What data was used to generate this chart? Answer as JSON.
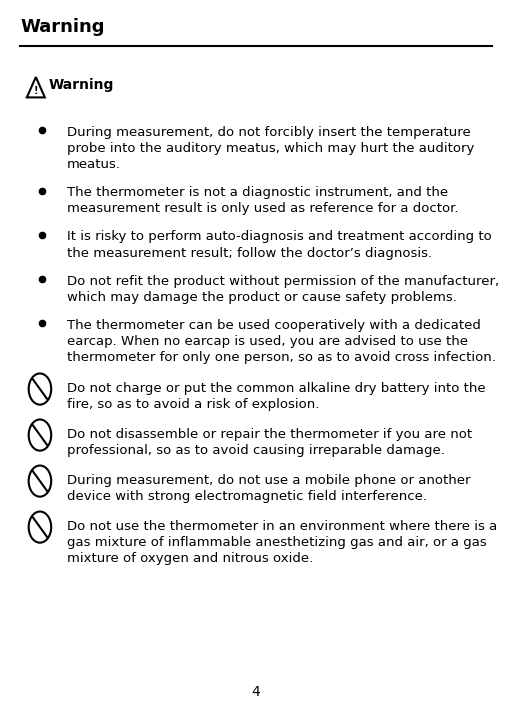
{
  "title": "Warning",
  "warning_label": "Warning",
  "page_number": "4",
  "background_color": "#ffffff",
  "text_color": "#000000",
  "title_fontsize": 13,
  "body_fontsize": 9.5,
  "bullet_items": [
    "During measurement, do not forcibly insert the temperature\nprobe into the auditory meatus, which may hurt the auditory\nmeatus.",
    "The thermometer is not a diagnostic instrument, and the\nmeasurement result is only used as reference for a doctor.",
    "It is risky to perform auto-diagnosis and treatment according to\nthe measurement result; follow the doctor’s diagnosis.",
    "Do not refit the product without permission of the manufacturer,\nwhich may damage the product or cause safety problems.",
    "The thermometer can be used cooperatively with a dedicated\nearcap. When no earcap is used, you are advised to use the\nthermometer for only one person, so as to avoid cross infection."
  ],
  "no_symbol_items": [
    "Do not charge or put the common alkaline dry battery into the\nfire, so as to avoid a risk of explosion.",
    "Do not disassemble or repair the thermometer if you are not\nprofessional, so as to avoid causing irreparable damage.",
    "During measurement, do not use a mobile phone or another\ndevice with strong electromagnetic field interference.",
    "Do not use the thermometer in an environment where there is a\ngas mixture of inflammable anesthetizing gas and air, or a gas\nmixture of oxygen and nitrous oxide."
  ]
}
